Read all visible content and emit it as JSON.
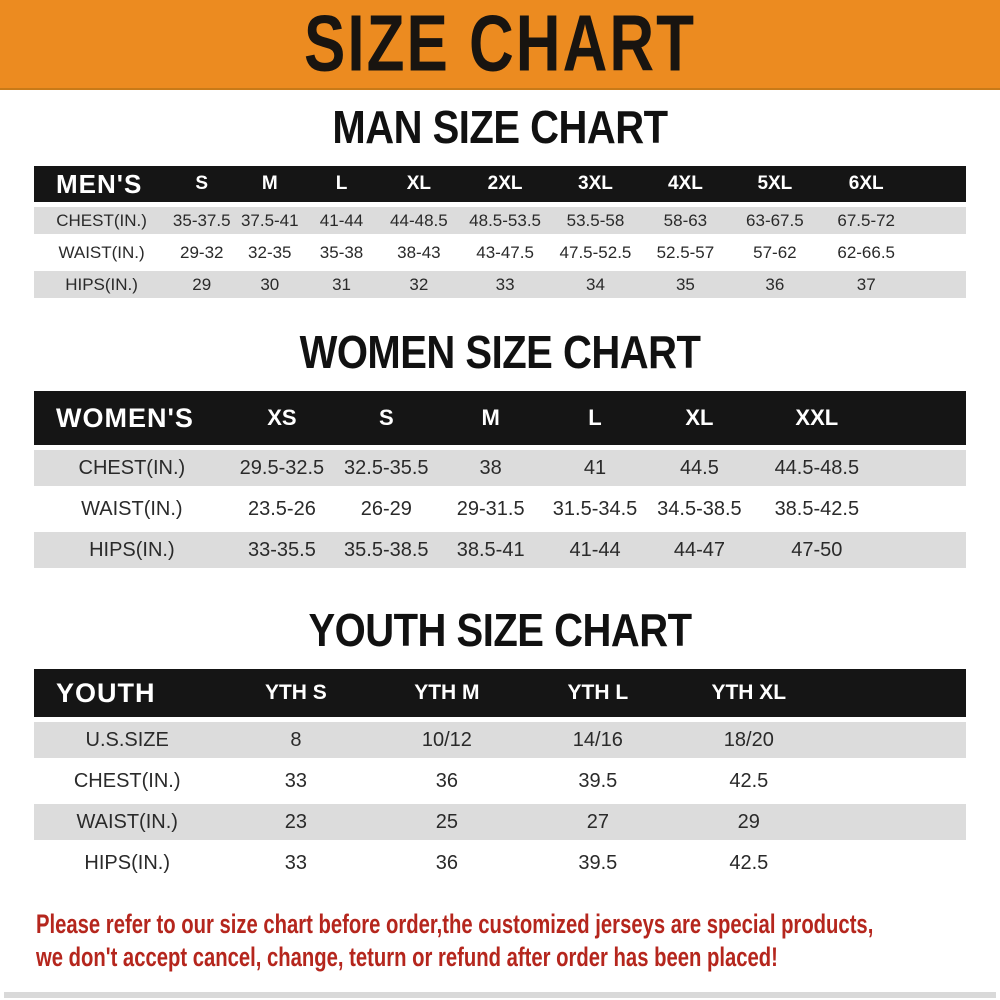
{
  "banner": {
    "title": "SIZE CHART",
    "bg_color": "#ec8b20",
    "text_color": "#181410"
  },
  "colors": {
    "table_header_bar": "#151515",
    "row_stripe_gray": "#dcdcdc",
    "footer_red": "#b5261d"
  },
  "sections": [
    {
      "heading": "MAN SIZE CHART",
      "table": {
        "label": "MEN'S",
        "columns": [
          "S",
          "M",
          "L",
          "XL",
          "2XL",
          "3XL",
          "4XL",
          "5XL",
          "6XL"
        ],
        "rows": [
          {
            "label": "CHEST(IN.)",
            "values": [
              "35-37.5",
              "37.5-41",
              "41-44",
              "44-48.5",
              "48.5-53.5",
              "53.5-58",
              "58-63",
              "63-67.5",
              "67.5-72"
            ]
          },
          {
            "label": "WAIST(IN.)",
            "values": [
              "29-32",
              "32-35",
              "35-38",
              "38-43",
              "43-47.5",
              "47.5-52.5",
              "52.5-57",
              "57-62",
              "62-66.5"
            ]
          },
          {
            "label": "HIPS(IN.)",
            "values": [
              "29",
              "30",
              "31",
              "32",
              "33",
              "34",
              "35",
              "36",
              "37"
            ]
          }
        ]
      }
    },
    {
      "heading": "WOMEN SIZE CHART",
      "table": {
        "label": "WOMEN'S",
        "columns": [
          "XS",
          "S",
          "M",
          "L",
          "XL",
          "XXL"
        ],
        "rows": [
          {
            "label": "CHEST(IN.)",
            "values": [
              "29.5-32.5",
              "32.5-35.5",
              "38",
              "41",
              "44.5",
              "44.5-48.5"
            ]
          },
          {
            "label": "WAIST(IN.)",
            "values": [
              "23.5-26",
              "26-29",
              "29-31.5",
              "31.5-34.5",
              "34.5-38.5",
              "38.5-42.5"
            ]
          },
          {
            "label": "HIPS(IN.)",
            "values": [
              "33-35.5",
              "35.5-38.5",
              "38.5-41",
              "41-44",
              "44-47",
              "47-50"
            ]
          }
        ]
      }
    },
    {
      "heading": "YOUTH SIZE CHART",
      "table": {
        "label": "YOUTH",
        "columns": [
          "YTH S",
          "YTH M",
          "YTH L",
          "YTH XL"
        ],
        "rows": [
          {
            "label": "U.S.SIZE",
            "values": [
              "8",
              "10/12",
              "14/16",
              "18/20"
            ]
          },
          {
            "label": "CHEST(IN.)",
            "values": [
              "33",
              "36",
              "39.5",
              "42.5"
            ]
          },
          {
            "label": "WAIST(IN.)",
            "values": [
              "23",
              "25",
              "27",
              "29"
            ]
          },
          {
            "label": "HIPS(IN.)",
            "values": [
              "33",
              "36",
              "39.5",
              "42.5"
            ]
          }
        ]
      }
    }
  ],
  "footer": {
    "line1": "Please refer to our size chart before order,the customized jerseys are special products,",
    "line2": "we don't accept cancel, change, teturn or refund after order has been placed!",
    "text_color": "#b5261d"
  }
}
